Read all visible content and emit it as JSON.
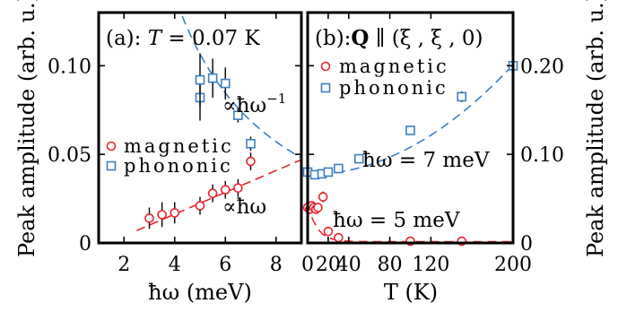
{
  "chart_data": [
    {
      "panel": "a",
      "type": "scatter",
      "title": "(a): T = 0.07 K",
      "xlabel": "ħω (meV)",
      "ylabel": "Peak amplitude (arb. u.)",
      "xlim": [
        1,
        9
      ],
      "ylim": [
        0,
        0.13
      ],
      "xticks": [
        "2",
        "4",
        "6",
        "8"
      ],
      "yticks": [
        "0",
        "0.05",
        "0.10"
      ],
      "legend": [
        "magnetic",
        "phononic"
      ],
      "legend_position": "center-right",
      "annotations": [
        "∝ħω⁻¹",
        "∝ħω"
      ],
      "series": [
        {
          "name": "magnetic",
          "color": "#e8262a",
          "marker": "circle",
          "x": [
            3,
            3.5,
            4,
            5,
            5.5,
            6,
            6.5,
            7
          ],
          "y": [
            0.014,
            0.016,
            0.017,
            0.021,
            0.028,
            0.03,
            0.031,
            0.046
          ],
          "err": [
            0.006,
            0.007,
            0.006,
            0.005,
            0.005,
            0.005,
            0.005,
            0.005
          ]
        },
        {
          "name": "phononic",
          "color": "#3b7fc4",
          "marker": "square",
          "x": [
            5,
            5,
            5.5,
            6,
            6.5,
            7
          ],
          "y": [
            0.082,
            0.092,
            0.093,
            0.09,
            0.072,
            0.056
          ],
          "err": [
            0.013,
            0.015,
            0.011,
            0.009,
            0.004,
            0.004
          ]
        }
      ],
      "fits": [
        {
          "for": "magnetic",
          "form": "linear",
          "x": [
            2.5,
            9
          ],
          "y": [
            0.007,
            0.047
          ]
        },
        {
          "for": "phononic",
          "form": "inverse",
          "x": [
            4.3,
            9
          ],
          "y": [
            0.128,
            0.048
          ]
        }
      ]
    },
    {
      "panel": "b",
      "type": "scatter",
      "title": "(b): Q ∥ (ξ, ξ, 0)",
      "xlabel": "T (K)",
      "ylabel": "Peak amplitude (arb. u.)",
      "xlim": [
        0,
        200
      ],
      "ylim": [
        0,
        0.26
      ],
      "xticks": [
        "0",
        "20",
        "40",
        "80",
        "120",
        "200"
      ],
      "yticks": [
        "0",
        "0.10",
        "0.20"
      ],
      "legend": [
        "magnetic",
        "phononic"
      ],
      "legend_position": "top-left",
      "annotations": [
        "ħω = 7 meV",
        "ħω = 5 meV"
      ],
      "series": [
        {
          "name": "phononic",
          "color": "#3b7fc4",
          "marker": "square",
          "x": [
            0,
            7,
            14,
            20,
            30,
            50,
            100,
            150,
            200
          ],
          "y": [
            0.08,
            0.077,
            0.078,
            0.08,
            0.084,
            0.095,
            0.127,
            0.165,
            0.2
          ],
          "err": [
            0.003,
            0.003,
            0.003,
            0.003,
            0.003,
            0.004,
            0.005,
            0.006,
            0.008
          ]
        },
        {
          "name": "magnetic",
          "color": "#e8262a",
          "marker": "circle",
          "x": [
            0,
            2,
            4,
            6,
            8,
            10,
            15,
            20,
            30,
            100,
            150
          ],
          "y": [
            0.04,
            0.038,
            0.042,
            0.04,
            0.038,
            0.04,
            0.052,
            0.013,
            0.006,
            0.002,
            0.002
          ],
          "err": [
            0.004,
            0.004,
            0.004,
            0.004,
            0.004,
            0.004,
            0.006,
            0.005,
            0.003,
            0.002,
            0.002
          ]
        }
      ]
    }
  ],
  "texts": {
    "a_title_prefix": "(a): ",
    "a_title_T": "T",
    "a_title_rest": " = 0.07 K",
    "b_title_prefix": "(b):",
    "b_title_Q": "Q",
    "b_title_rest": " ∥ (ξ , ξ , 0)",
    "a_xlabel": "ħω  (meV)",
    "b_xlabel": "T (K)",
    "ylabel_left": "Peak amplitude (arb. u.)",
    "ylabel_right": "Peak amplitude (arb. u.)",
    "a_legend_magnetic": "magnetic",
    "a_legend_phononic": "phononic",
    "b_legend_magnetic": "magnetic",
    "b_legend_phononic": "phononic",
    "a_annot_inv": "∝ħω",
    "a_annot_inv_sup": "−1",
    "a_annot_lin": "∝ħω",
    "b_annot_7": "ħω  = 7 meV",
    "b_annot_5": "ħω  = 5 meV"
  }
}
